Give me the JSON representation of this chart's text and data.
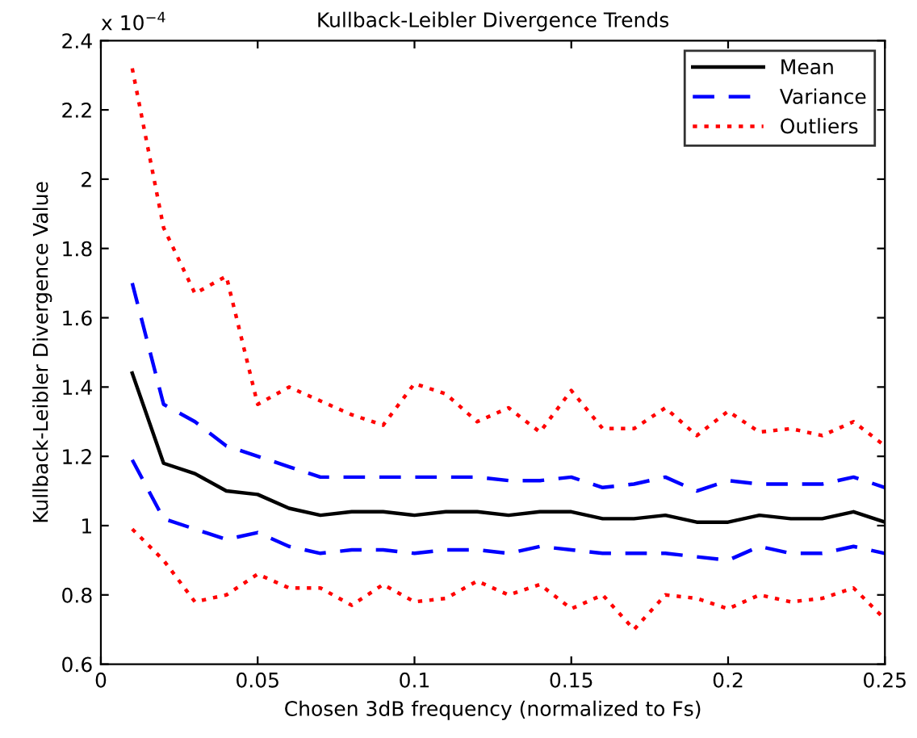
{
  "chart_data": {
    "type": "line",
    "title": "Kullback-Leibler Divergence Trends",
    "xlabel": "Chosen 3dB frequency (normalized to Fs)",
    "ylabel": "Kullback-Leibler Divergence Value",
    "annotations": [
      "x 10$^{−4}$"
    ],
    "x": [
      0.01,
      0.02,
      0.03,
      0.04,
      0.05,
      0.06,
      0.07,
      0.08,
      0.09,
      0.1,
      0.11,
      0.12,
      0.13,
      0.14,
      0.15,
      0.16,
      0.17,
      0.18,
      0.19,
      0.2,
      0.21,
      0.22,
      0.23,
      0.24,
      0.25
    ],
    "series": [
      {
        "name": "Mean",
        "color": "#000000",
        "line_style": "solid",
        "values": [
          1.44,
          1.18,
          1.15,
          1.1,
          1.09,
          1.05,
          1.03,
          1.04,
          1.04,
          1.03,
          1.04,
          1.04,
          1.03,
          1.04,
          1.04,
          1.02,
          1.02,
          1.03,
          1.01,
          1.01,
          1.03,
          1.02,
          1.02,
          1.04,
          1.01
        ]
      },
      {
        "name": "Variance",
        "color": "#0000ff",
        "line_style": "dashed",
        "values": [
          1.7,
          1.35,
          1.3,
          1.23,
          1.2,
          1.17,
          1.14,
          1.14,
          1.14,
          1.14,
          1.14,
          1.14,
          1.13,
          1.13,
          1.14,
          1.11,
          1.12,
          1.14,
          1.1,
          1.13,
          1.12,
          1.12,
          1.12,
          1.14,
          1.11
        ]
      },
      {
        "name": "Outliers",
        "color": "#ff0000",
        "line_style": "dotted",
        "values": [
          2.32,
          1.86,
          1.67,
          1.72,
          1.35,
          1.4,
          1.36,
          1.32,
          1.29,
          1.41,
          1.38,
          1.3,
          1.34,
          1.27,
          1.39,
          1.28,
          1.28,
          1.34,
          1.26,
          1.33,
          1.27,
          1.28,
          1.26,
          1.3,
          1.23
        ]
      },
      {
        "color": "#0000ff",
        "line_style": "dashed",
        "values": [
          1.19,
          1.02,
          0.99,
          0.96,
          0.98,
          0.94,
          0.92,
          0.93,
          0.93,
          0.92,
          0.93,
          0.93,
          0.92,
          0.94,
          0.93,
          0.92,
          0.92,
          0.92,
          0.91,
          0.9,
          0.94,
          0.92,
          0.92,
          0.94,
          0.92
        ]
      },
      {
        "color": "#ff0000",
        "line_style": "dotted",
        "values": [
          0.99,
          0.9,
          0.78,
          0.8,
          0.86,
          0.82,
          0.82,
          0.77,
          0.83,
          0.78,
          0.79,
          0.84,
          0.8,
          0.83,
          0.76,
          0.8,
          0.7,
          0.8,
          0.79,
          0.76,
          0.8,
          0.78,
          0.79,
          0.82,
          0.73
        ]
      }
    ],
    "xlim": [
      0,
      0.25
    ],
    "xticks": [
      0,
      0.05,
      0.1,
      0.15,
      0.2,
      0.25
    ],
    "ylim": [
      0.6,
      2.4
    ],
    "yticks": [
      0.6,
      0.8,
      1,
      1.2,
      1.4,
      1.6,
      1.8,
      2,
      2.2,
      2.4
    ],
    "grid": false,
    "legend": "top right",
    "marker": "none"
  }
}
